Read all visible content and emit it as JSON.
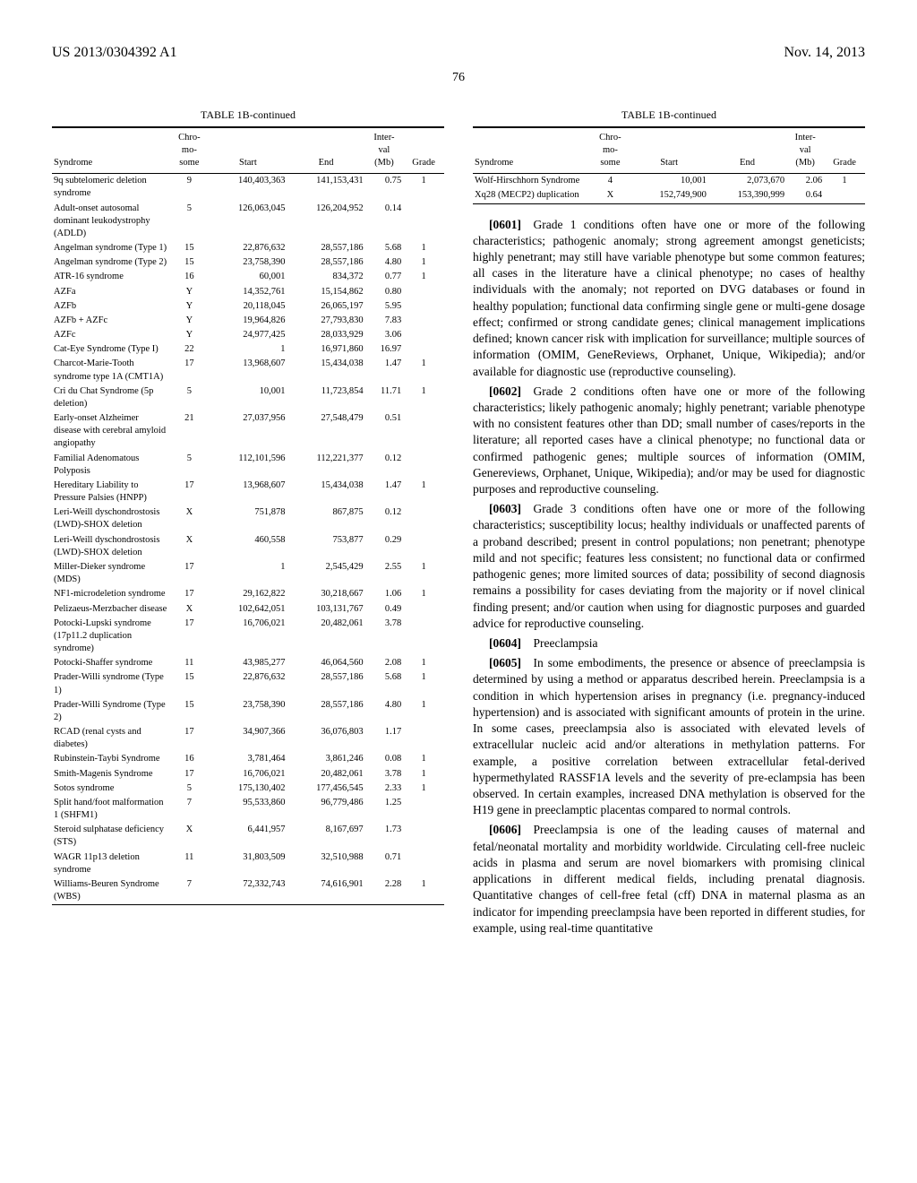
{
  "header": {
    "left": "US 2013/0304392 A1",
    "right": "Nov. 14, 2013"
  },
  "page_number": "76",
  "tables": {
    "left": {
      "title": "TABLE 1B-continued",
      "columns": [
        "Syndrome",
        "Chro-\nmo-\nsome",
        "Start",
        "End",
        "Inter-\nval\n(Mb)",
        "Grade"
      ],
      "rows": [
        [
          "9q subtelomeric deletion syndrome",
          "9",
          "140,403,363",
          "141,153,431",
          "0.75",
          "1"
        ],
        [
          "Adult-onset autosomal dominant leukodystrophy (ADLD)",
          "5",
          "126,063,045",
          "126,204,952",
          "0.14",
          ""
        ],
        [
          "Angelman syndrome (Type 1)",
          "15",
          "22,876,632",
          "28,557,186",
          "5.68",
          "1"
        ],
        [
          "Angelman syndrome (Type 2)",
          "15",
          "23,758,390",
          "28,557,186",
          "4.80",
          "1"
        ],
        [
          "ATR-16 syndrome",
          "16",
          "60,001",
          "834,372",
          "0.77",
          "1"
        ],
        [
          "AZFa",
          "Y",
          "14,352,761",
          "15,154,862",
          "0.80",
          ""
        ],
        [
          "AZFb",
          "Y",
          "20,118,045",
          "26,065,197",
          "5.95",
          ""
        ],
        [
          "AZFb + AZFc",
          "Y",
          "19,964,826",
          "27,793,830",
          "7.83",
          ""
        ],
        [
          "AZFc",
          "Y",
          "24,977,425",
          "28,033,929",
          "3.06",
          ""
        ],
        [
          "Cat-Eye Syndrome (Type I)",
          "22",
          "1",
          "16,971,860",
          "16.97",
          ""
        ],
        [
          "Charcot-Marie-Tooth syndrome type 1A (CMT1A)",
          "17",
          "13,968,607",
          "15,434,038",
          "1.47",
          "1"
        ],
        [
          "Cri du Chat Syndrome (5p deletion)",
          "5",
          "10,001",
          "11,723,854",
          "11.71",
          "1"
        ],
        [
          "Early-onset Alzheimer disease with cerebral amyloid angiopathy",
          "21",
          "27,037,956",
          "27,548,479",
          "0.51",
          ""
        ],
        [
          "Familial Adenomatous Polyposis",
          "5",
          "112,101,596",
          "112,221,377",
          "0.12",
          ""
        ],
        [
          "Hereditary Liability to Pressure Palsies (HNPP)",
          "17",
          "13,968,607",
          "15,434,038",
          "1.47",
          "1"
        ],
        [
          "Leri-Weill dyschondrostosis (LWD)-SHOX deletion",
          "X",
          "751,878",
          "867,875",
          "0.12",
          ""
        ],
        [
          "Leri-Weill dyschondrostosis (LWD)-SHOX deletion",
          "X",
          "460,558",
          "753,877",
          "0.29",
          ""
        ],
        [
          "Miller-Dieker syndrome (MDS)",
          "17",
          "1",
          "2,545,429",
          "2.55",
          "1"
        ],
        [
          "NF1-microdeletion syndrome",
          "17",
          "29,162,822",
          "30,218,667",
          "1.06",
          "1"
        ],
        [
          "Pelizaeus-Merzbacher disease",
          "X",
          "102,642,051",
          "103,131,767",
          "0.49",
          ""
        ],
        [
          "Potocki-Lupski syndrome (17p11.2 duplication syndrome)",
          "17",
          "16,706,021",
          "20,482,061",
          "3.78",
          ""
        ],
        [
          "Potocki-Shaffer syndrome",
          "11",
          "43,985,277",
          "46,064,560",
          "2.08",
          "1"
        ],
        [
          "Prader-Willi syndrome (Type 1)",
          "15",
          "22,876,632",
          "28,557,186",
          "5.68",
          "1"
        ],
        [
          "Prader-Willi Syndrome (Type 2)",
          "15",
          "23,758,390",
          "28,557,186",
          "4.80",
          "1"
        ],
        [
          "RCAD (renal cysts and diabetes)",
          "17",
          "34,907,366",
          "36,076,803",
          "1.17",
          ""
        ],
        [
          "Rubinstein-Taybi Syndrome",
          "16",
          "3,781,464",
          "3,861,246",
          "0.08",
          "1"
        ],
        [
          "Smith-Magenis Syndrome",
          "17",
          "16,706,021",
          "20,482,061",
          "3.78",
          "1"
        ],
        [
          "Sotos syndrome",
          "5",
          "175,130,402",
          "177,456,545",
          "2.33",
          "1"
        ],
        [
          "Split hand/foot malformation 1 (SHFM1)",
          "7",
          "95,533,860",
          "96,779,486",
          "1.25",
          ""
        ],
        [
          "Steroid sulphatase deficiency (STS)",
          "X",
          "6,441,957",
          "8,167,697",
          "1.73",
          ""
        ],
        [
          "WAGR 11p13 deletion syndrome",
          "11",
          "31,803,509",
          "32,510,988",
          "0.71",
          ""
        ],
        [
          "Williams-Beuren Syndrome (WBS)",
          "7",
          "72,332,743",
          "74,616,901",
          "2.28",
          "1"
        ]
      ]
    },
    "right": {
      "title": "TABLE 1B-continued",
      "columns": [
        "Syndrome",
        "Chro-\nmo-\nsome",
        "Start",
        "End",
        "Inter-\nval\n(Mb)",
        "Grade"
      ],
      "rows": [
        [
          "Wolf-Hirschhorn Syndrome",
          "4",
          "10,001",
          "2,073,670",
          "2.06",
          "1"
        ],
        [
          "Xq28 (MECP2) duplication",
          "X",
          "152,749,900",
          "153,390,999",
          "0.64",
          ""
        ]
      ]
    }
  },
  "paragraphs": [
    {
      "num": "[0601]",
      "text": "Grade 1 conditions often have one or more of the following characteristics; pathogenic anomaly; strong agreement amongst geneticists; highly penetrant; may still have variable phenotype but some common features; all cases in the literature have a clinical phenotype; no cases of healthy individuals with the anomaly; not reported on DVG databases or found in healthy population; functional data confirming single gene or multi-gene dosage effect; confirmed or strong candidate genes; clinical management implications defined; known cancer risk with implication for surveillance; multiple sources of information (OMIM, GeneReviews, Orphanet, Unique, Wikipedia); and/or available for diagnostic use (reproductive counseling)."
    },
    {
      "num": "[0602]",
      "text": "Grade 2 conditions often have one or more of the following characteristics; likely pathogenic anomaly; highly penetrant; variable phenotype with no consistent features other than DD; small number of cases/reports in the literature; all reported cases have a clinical phenotype; no functional data or confirmed pathogenic genes; multiple sources of information (OMIM, Genereviews, Orphanet, Unique, Wikipedia); and/or may be used for diagnostic purposes and reproductive counseling."
    },
    {
      "num": "[0603]",
      "text": "Grade 3 conditions often have one or more of the following characteristics; susceptibility locus; healthy individuals or unaffected parents of a proband described; present in control populations; non penetrant; phenotype mild and not specific; features less consistent; no functional data or confirmed pathogenic genes; more limited sources of data; possibility of second diagnosis remains a possibility for cases deviating from the majority or if novel clinical finding present; and/or caution when using for diagnostic purposes and guarded advice for reproductive counseling."
    },
    {
      "num": "[0604]",
      "text": "Preeclampsia"
    },
    {
      "num": "[0605]",
      "text": "In some embodiments, the presence or absence of preeclampsia is determined by using a method or apparatus described herein. Preeclampsia is a condition in which hypertension arises in pregnancy (i.e. pregnancy-induced hypertension) and is associated with significant amounts of protein in the urine. In some cases, preeclampsia also is associated with elevated levels of extracellular nucleic acid and/or alterations in methylation patterns. For example, a positive correlation between extracellular fetal-derived hypermethylated RASSF1A levels and the severity of pre-eclampsia has been observed. In certain examples, increased DNA methylation is observed for the H19 gene in preeclamptic placentas compared to normal controls."
    },
    {
      "num": "[0606]",
      "text": "Preeclampsia is one of the leading causes of maternal and fetal/neonatal mortality and morbidity worldwide. Circulating cell-free nucleic acids in plasma and serum are novel biomarkers with promising clinical applications in different medical fields, including prenatal diagnosis. Quantitative changes of cell-free fetal (cff) DNA in maternal plasma as an indicator for impending preeclampsia have been reported in different studies, for example, using real-time quantitative"
    }
  ]
}
